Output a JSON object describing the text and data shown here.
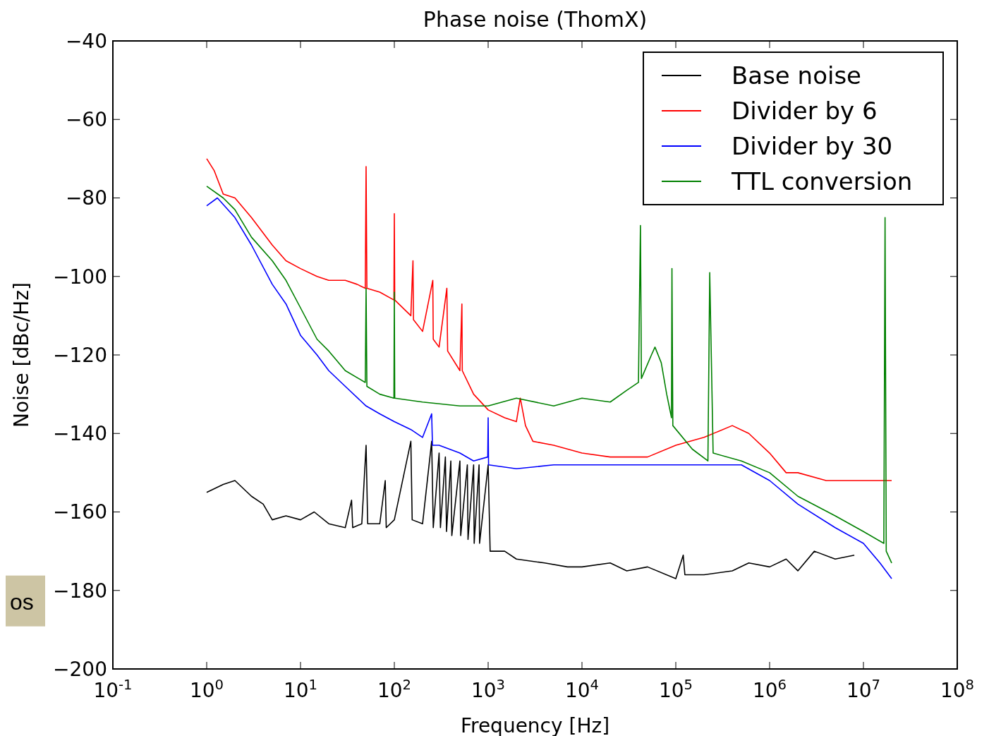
{
  "chart_data": {
    "type": "line",
    "title": "Phase noise (ThomX)",
    "xlabel": "Frequency [Hz]",
    "ylabel": "Noise [dBc/Hz]",
    "log": "x",
    "grid": false,
    "legend": "top right",
    "line_style": "solid",
    "xlim": [
      0.1,
      100000000
    ],
    "ylim": [
      -200,
      -40
    ],
    "xticks": [
      {
        "value": 0.1,
        "label": "10$^{-1}$"
      },
      {
        "value": 1,
        "label": "10$^{0}$"
      },
      {
        "value": 10,
        "label": "10$^{1}$"
      },
      {
        "value": 100,
        "label": "10$^{2}$"
      },
      {
        "value": 1000,
        "label": "10$^{3}$"
      },
      {
        "value": 10000,
        "label": "10$^{4}$"
      },
      {
        "value": 100000,
        "label": "10$^{5}$"
      },
      {
        "value": 1000000,
        "label": "10$^{6}$"
      },
      {
        "value": 10000000,
        "label": "10$^{7}$"
      },
      {
        "value": 100000000,
        "label": "10$^{8}$"
      }
    ],
    "yticks": [
      {
        "value": -200,
        "label": "−200"
      },
      {
        "value": -180,
        "label": "−180"
      },
      {
        "value": -160,
        "label": "−160"
      },
      {
        "value": -140,
        "label": "−140"
      },
      {
        "value": -120,
        "label": "−120"
      },
      {
        "value": -100,
        "label": "−100"
      },
      {
        "value": -80,
        "label": "−80"
      },
      {
        "value": -60,
        "label": "−60"
      },
      {
        "value": -40,
        "label": "−40"
      }
    ],
    "annotations": [
      "os"
    ],
    "series": [
      {
        "name": "Base noise",
        "color": "#000000",
        "x": [
          1,
          1.5,
          2,
          3,
          4,
          5,
          7,
          10,
          14,
          20,
          30,
          35,
          36,
          45,
          50,
          52,
          70,
          80,
          82,
          100,
          150,
          155,
          200,
          250,
          260,
          300,
          310,
          350,
          360,
          400,
          410,
          500,
          510,
          600,
          610,
          700,
          710,
          800,
          810,
          1000,
          1050,
          1500,
          2000,
          4000,
          7000,
          10000,
          20000,
          30000,
          50000,
          100000,
          120000,
          125000,
          200000,
          400000,
          600000,
          1000000,
          1500000,
          2000000,
          3000000,
          5000000,
          8000000
        ],
        "values": [
          -155,
          -153,
          -152,
          -156,
          -158,
          -162,
          -161,
          -162,
          -160,
          -163,
          -164,
          -157,
          -164,
          -163,
          -143,
          -163,
          -163,
          -152,
          -164,
          -162,
          -142,
          -162,
          -163,
          -142,
          -164,
          -145,
          -164,
          -146,
          -165,
          -147,
          -166,
          -147,
          -166,
          -148,
          -167,
          -148,
          -168,
          -148,
          -168,
          -148,
          -170,
          -170,
          -172,
          -173,
          -174,
          -174,
          -173,
          -175,
          -174,
          -177,
          -171,
          -176,
          -176,
          -175,
          -173,
          -174,
          -172,
          -175,
          -170,
          -172,
          -171
        ]
      },
      {
        "name": "Divider by 6",
        "color": "#ff0000",
        "x": [
          1,
          1.2,
          1.5,
          2,
          3,
          5,
          7,
          10,
          15,
          20,
          30,
          40,
          49,
          50,
          51,
          70,
          99,
          100,
          101,
          150,
          158,
          160,
          200,
          257,
          260,
          300,
          363,
          370,
          500,
          525,
          530,
          700,
          1000,
          1500,
          2000,
          2200,
          2500,
          3000,
          5000,
          10000,
          20000,
          50000,
          100000,
          200000,
          400000,
          600000,
          1000000,
          1500000,
          2000000,
          4000000,
          10000000,
          20000000
        ],
        "values": [
          -70,
          -73,
          -79,
          -80,
          -85,
          -92,
          -96,
          -98,
          -100,
          -101,
          -101,
          -102,
          -103,
          -72,
          -103,
          -104,
          -106,
          -84,
          -106,
          -110,
          -96,
          -111,
          -114,
          -101,
          -116,
          -118,
          -103,
          -119,
          -124,
          -107,
          -124,
          -130,
          -134,
          -136,
          -137,
          -131,
          -138,
          -142,
          -143,
          -145,
          -146,
          -146,
          -143,
          -141,
          -138,
          -140,
          -145,
          -150,
          -150,
          -152,
          -152,
          -152
        ]
      },
      {
        "name": "Divider by 30",
        "color": "#0000ff",
        "x": [
          1,
          1.3,
          2,
          3,
          5,
          7,
          10,
          15,
          20,
          30,
          50,
          70,
          100,
          150,
          200,
          250,
          255,
          300,
          500,
          700,
          990,
          1000,
          1010,
          2000,
          5000,
          10000,
          100000,
          500000,
          1000000,
          2000000,
          5000000,
          10000000,
          15000000,
          20000000
        ],
        "values": [
          -82,
          -80,
          -85,
          -92,
          -102,
          -107,
          -115,
          -120,
          -124,
          -128,
          -133,
          -135,
          -137,
          -139,
          -141,
          -135,
          -143,
          -143,
          -145,
          -147,
          -146,
          -136,
          -148,
          -149,
          -148,
          -148,
          -148,
          -148,
          -152,
          -158,
          -164,
          -168,
          -173,
          -177
        ]
      },
      {
        "name": "TTL conversion",
        "color": "#008000",
        "x": [
          1,
          1.5,
          2,
          3,
          5,
          7,
          10,
          15,
          20,
          30,
          49,
          50,
          51,
          70,
          99,
          100,
          101,
          200,
          500,
          1000,
          2000,
          5000,
          10000,
          20000,
          30000,
          40000,
          42000,
          43000,
          55000,
          60000,
          70000,
          80000,
          90000,
          91000,
          93000,
          150000,
          220000,
          230000,
          250000,
          500000,
          1000000,
          2000000,
          5000000,
          10000000,
          16500000,
          17000000,
          17500000,
          20000000
        ],
        "values": [
          -77,
          -80,
          -83,
          -90,
          -96,
          -101,
          -108,
          -116,
          -119,
          -124,
          -127,
          -103,
          -128,
          -130,
          -131,
          -104,
          -131,
          -132,
          -133,
          -133,
          -131,
          -133,
          -131,
          -132,
          -129,
          -127,
          -87,
          -126,
          -120,
          -118,
          -122,
          -130,
          -136,
          -98,
          -138,
          -144,
          -147,
          -99,
          -145,
          -147,
          -150,
          -156,
          -161,
          -165,
          -168,
          -85,
          -170,
          -173
        ]
      }
    ]
  }
}
